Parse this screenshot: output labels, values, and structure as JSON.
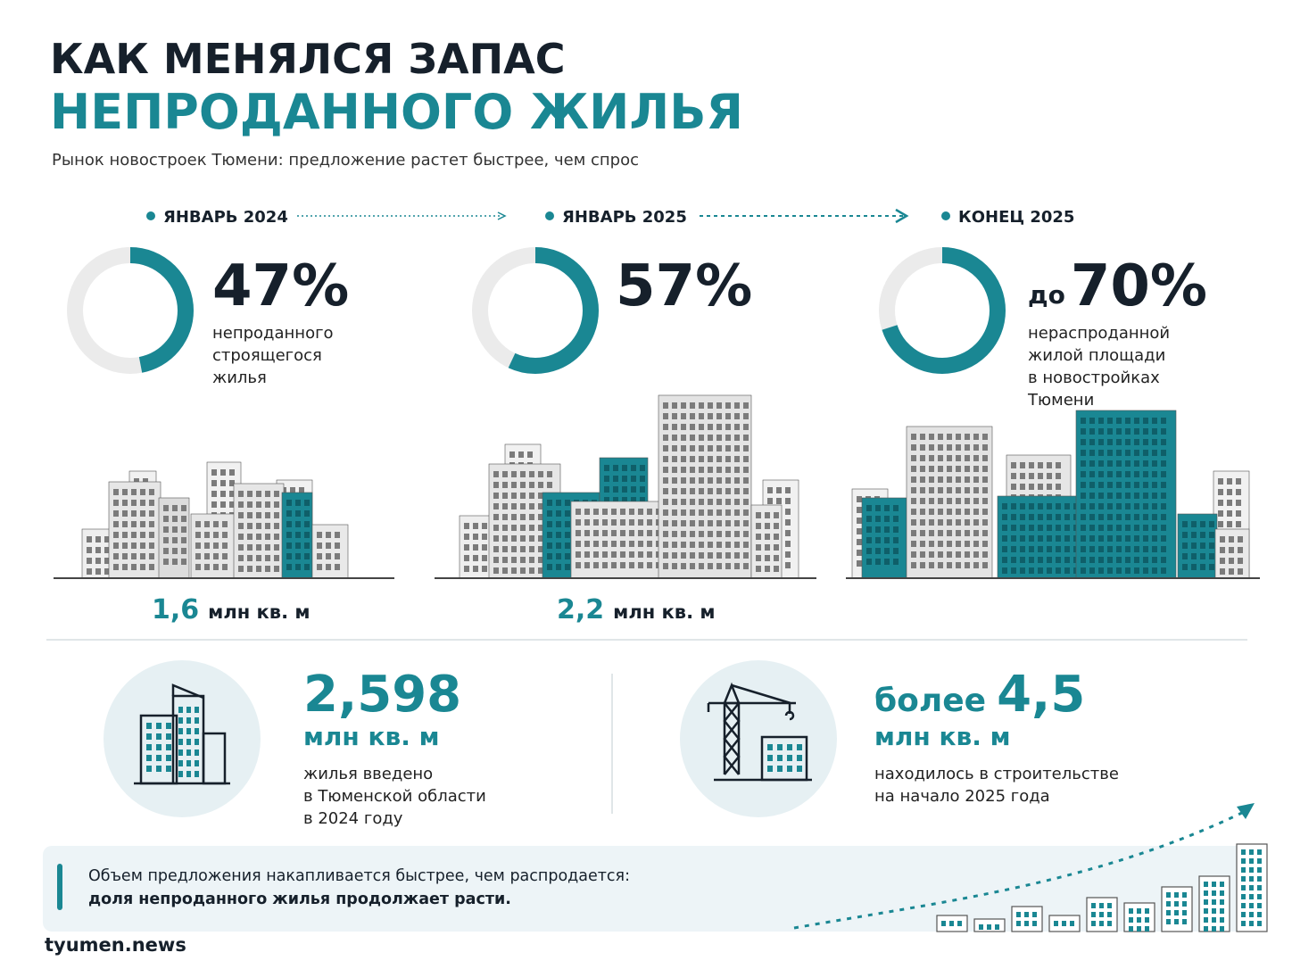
{
  "header": {
    "title_line1": "КАК МЕНЯЛСЯ ЗАПАС",
    "title_line2": "НЕПРОДАННОГО ЖИЛЬЯ",
    "subtitle": "Рынок новостроек Тюмени: предложение растет быстрее, чем спрос"
  },
  "periods": [
    {
      "date": "ЯНВАРЬ 2024",
      "value": 47,
      "value_label": "47%",
      "description": [
        "непроданного",
        "строящегося",
        "жилья"
      ],
      "area": "1,6",
      "area_unit": "млн кв. м"
    },
    {
      "date": "ЯНВАРЬ 2025",
      "value": 57,
      "value_label": "57%",
      "description": [],
      "area": "2,2",
      "area_unit": "млн кв. м"
    },
    {
      "date": "КОНЕЦ 2025",
      "prefix": "до",
      "value": 70,
      "value_label": "70%",
      "description": [
        "нераспроданной",
        "жилой площади",
        "в новостройках",
        "Тюмени"
      ]
    }
  ],
  "stats": [
    {
      "prefix": "",
      "value": "2,598",
      "unit": "млн кв. м",
      "description": [
        "жилья введено",
        "в Тюменской области",
        "в 2024 году"
      ]
    },
    {
      "prefix": "более",
      "value": "4,5",
      "unit": "млн кв. м",
      "description": [
        "находилось в строительстве",
        "на начало 2025 года"
      ]
    }
  ],
  "callout": {
    "line1": "Объем предложения накапливается быстрее, чем распродается:",
    "line2": "доля непроданного жилья продолжает расти."
  },
  "footer": {
    "brand": "tyumen.news"
  }
}
